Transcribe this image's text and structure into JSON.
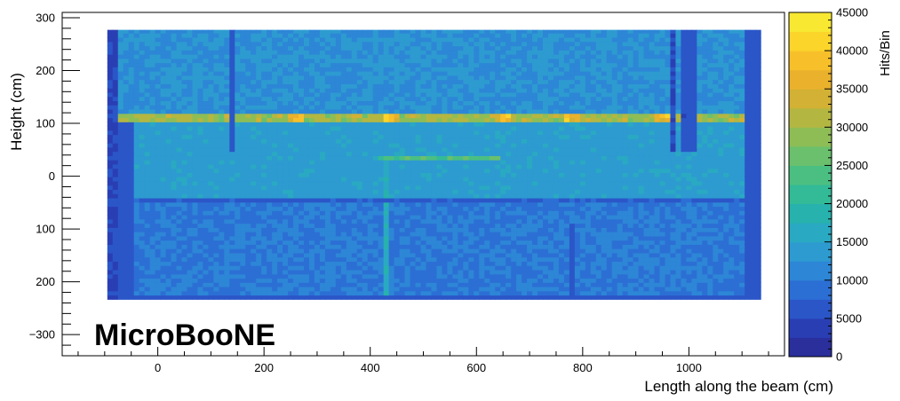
{
  "chart_data": {
    "type": "heatmap",
    "watermark": "MicroBooNE",
    "xlabel": "Length along the beam (cm)",
    "ylabel": "Height (cm)",
    "zlabel": "Hits/Bin",
    "xlim": [
      -180,
      1180
    ],
    "ylim": [
      -340,
      310
    ],
    "x_ticks": [
      {
        "value": 0,
        "label": "0"
      },
      {
        "value": 200,
        "label": "200"
      },
      {
        "value": 400,
        "label": "400"
      },
      {
        "value": 600,
        "label": "600"
      },
      {
        "value": 800,
        "label": "800"
      },
      {
        "value": 1000,
        "label": "1000"
      }
    ],
    "y_ticks": [
      {
        "value": 300,
        "label": "300"
      },
      {
        "value": 200,
        "label": "200"
      },
      {
        "value": 100,
        "label": "100"
      },
      {
        "value": 0,
        "label": "0"
      },
      {
        "value": -100,
        "label": "100"
      },
      {
        "value": -200,
        "label": "200"
      },
      {
        "value": -300,
        "label": "−300"
      }
    ],
    "z_range": [
      0,
      45000
    ],
    "z_ticks": [
      {
        "value": 0,
        "label": "0"
      },
      {
        "value": 5000,
        "label": "5000"
      },
      {
        "value": 10000,
        "label": "10000"
      },
      {
        "value": 15000,
        "label": "15000"
      },
      {
        "value": 20000,
        "label": "20000"
      },
      {
        "value": 25000,
        "label": "25000"
      },
      {
        "value": 30000,
        "label": "30000"
      },
      {
        "value": 35000,
        "label": "35000"
      },
      {
        "value": 40000,
        "label": "40000"
      },
      {
        "value": 45000,
        "label": "45000"
      }
    ],
    "histogram": {
      "x_range": [
        -95,
        1135
      ],
      "y_range": [
        -233,
        277
      ],
      "base_value": 11000,
      "features": {
        "low_columns": [
          {
            "x": [
              -95,
              -72
            ],
            "value": 5000
          },
          {
            "x": [
              -72,
              -40
            ],
            "value": 6000,
            "y_max": 100
          },
          {
            "x": [
              1110,
              1135
            ],
            "value": 6000
          }
        ],
        "vertical_lines": [
          {
            "x": 140,
            "value": 6500,
            "y_min": 45
          },
          {
            "x": 970,
            "value": 5000,
            "y_min": 45
          },
          {
            "x": 990,
            "value": 5500,
            "y_min": 45
          },
          {
            "x": 1005,
            "value": 6000,
            "y_min": 45
          },
          {
            "x": 780,
            "value": 6000,
            "y_max": -90
          }
        ],
        "bright_band": {
          "y": [
            105,
            120
          ],
          "value": 30000,
          "hotspots_x": [
            260,
            440,
            650,
            780,
            950
          ],
          "hotspot_value": 37000
        },
        "secondary_band": {
          "y": [
            30,
            40
          ],
          "x": [
            420,
            650
          ],
          "value": 24000
        },
        "upper_region": {
          "y": [
            120,
            277
          ],
          "value": 12500
        },
        "mid_region": {
          "y": [
            -45,
            105
          ],
          "value": 14000
        },
        "lower_region": {
          "y": [
            -233,
            -45
          ],
          "value": 10000
        },
        "edge_strips": [
          {
            "y": [
              -233,
              -222
            ],
            "value": 6000
          },
          {
            "y": [
              -48,
              -40
            ],
            "value": 7000
          }
        ],
        "brighter_vertical": {
          "x": 430,
          "y": [
            -233,
            40
          ],
          "value": 17000
        }
      }
    }
  }
}
